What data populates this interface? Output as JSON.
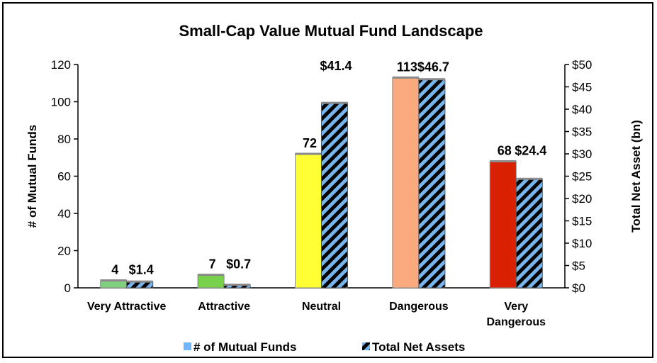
{
  "chart_data": {
    "type": "bar",
    "title": "Small-Cap Value Mutual Fund Landscape",
    "categories": [
      "Very Attractive",
      "Attractive",
      "Neutral",
      "Dangerous",
      "Very Dangerous"
    ],
    "category_lines": [
      [
        "Very Attractive"
      ],
      [
        "Attractive"
      ],
      [
        "Neutral"
      ],
      [
        "Dangerous"
      ],
      [
        "Very",
        "Dangerous"
      ]
    ],
    "series": [
      {
        "name": "# of Mutual Funds",
        "axis": "left",
        "values": [
          4,
          7,
          72,
          113,
          68
        ],
        "labels": [
          "4",
          "7",
          "72",
          "113",
          "68"
        ],
        "colors": [
          "#7fcf7f",
          "#77d14b",
          "#ffff33",
          "#fbaa7f",
          "#d92000"
        ],
        "legend_color": "#6fb6ff"
      },
      {
        "name": "Total Net Assets",
        "axis": "right",
        "values": [
          1.4,
          0.7,
          41.4,
          46.7,
          24.4
        ],
        "labels": [
          "$1.4",
          "$0.7",
          "$41.4",
          "$46.7",
          "$24.4"
        ],
        "pattern": "diagonal stripes",
        "colors": [
          "#000000",
          "#78b4ec"
        ]
      }
    ],
    "ylabel": "# of Mutual Funds",
    "ylim": [
      0,
      120
    ],
    "yticks": [
      0,
      20,
      40,
      60,
      80,
      100,
      120
    ],
    "ylabel_right": "Total Net Asset (bn)",
    "ylim_right": [
      0,
      50
    ],
    "yticks_right": [
      "$0",
      "$5",
      "$10",
      "$15",
      "$20",
      "$25",
      "$30",
      "$35",
      "$40",
      "$45",
      "$50"
    ],
    "legend_position": "bottom",
    "grid": false
  }
}
